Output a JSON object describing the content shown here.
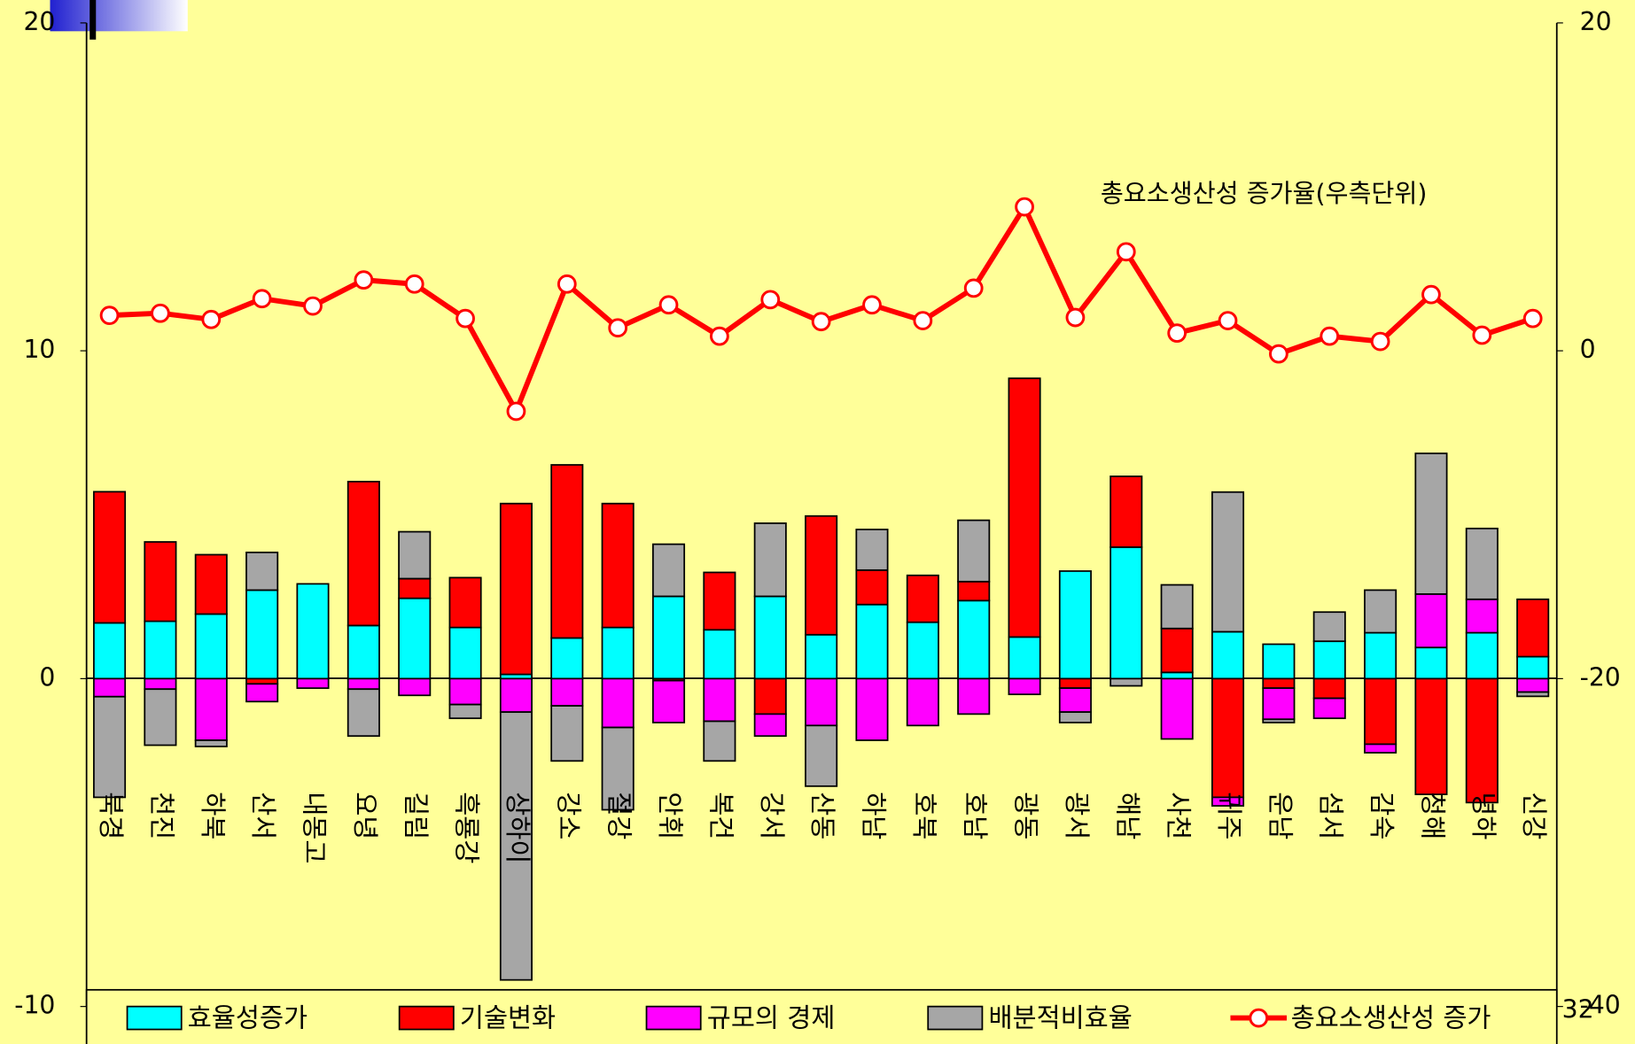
{
  "chart_data": {
    "type": "bar",
    "annotation": "총요소생산성 증가율(우측단위)",
    "page_number": "32",
    "categories": [
      "북경",
      "천진",
      "하북",
      "산서",
      "내몽고",
      "요녕",
      "길림",
      "흑룡강",
      "상하이",
      "강소",
      "절강",
      "안휘",
      "복건",
      "강서",
      "산동",
      "하남",
      "호북",
      "호남",
      "광동",
      "광서",
      "해남",
      "사천",
      "귀주",
      "운남",
      "섬서",
      "감숙",
      "청해",
      "녕하",
      "신강"
    ],
    "ylim": [
      -10,
      20
    ],
    "yticks": [
      -10,
      0,
      10,
      20
    ],
    "y2lim": [
      -40,
      20
    ],
    "y2ticks": [
      -40,
      -20,
      0,
      20
    ],
    "stacked": true,
    "series": [
      {
        "name": "효율성증가",
        "color": "#00ffff",
        "values": [
          1.7,
          1.75,
          1.97,
          2.7,
          2.89,
          1.62,
          2.45,
          1.56,
          0.13,
          1.24,
          1.56,
          2.51,
          1.49,
          2.51,
          1.34,
          2.26,
          1.72,
          2.38,
          1.27,
          3.28,
          4.01,
          0.19,
          1.43,
          1.05,
          1.14,
          1.4,
          0.95,
          1.4,
          0.67
        ]
      },
      {
        "name": "기술변화",
        "color": "#ff0000",
        "values": [
          4.0,
          2.42,
          1.81,
          -0.16,
          0,
          4.39,
          0.6,
          1.52,
          5.21,
          5.28,
          3.78,
          -0.06,
          1.75,
          -1.08,
          3.62,
          1.05,
          1.43,
          0.58,
          7.89,
          -0.29,
          2.16,
          1.34,
          -3.62,
          -0.29,
          -0.6,
          -2.0,
          -3.53,
          -3.78,
          1.75
        ]
      },
      {
        "name": "규모의 경제",
        "color": "#ff00ff",
        "values": [
          -0.55,
          -0.32,
          -1.88,
          -0.54,
          -0.29,
          -0.32,
          -0.51,
          -0.79,
          -1.02,
          -0.83,
          -1.49,
          -1.28,
          -1.3,
          -0.67,
          -1.43,
          -1.88,
          -1.43,
          -1.08,
          -0.48,
          -0.73,
          0,
          -1.84,
          -0.26,
          -0.95,
          -0.61,
          -0.26,
          1.63,
          1.02,
          -0.41
        ]
      },
      {
        "name": "배분적비효율",
        "color": "#a6a6a6",
        "values": [
          -3.07,
          -1.71,
          -0.19,
          1.15,
          0,
          -1.43,
          1.43,
          -0.42,
          -8.17,
          -1.68,
          -2.51,
          1.59,
          -1.21,
          2.23,
          -1.85,
          1.24,
          0,
          1.87,
          0,
          -0.32,
          -0.22,
          1.33,
          4.26,
          -0.1,
          0.89,
          1.3,
          4.29,
          2.16,
          -0.13
        ]
      },
      {
        "name": "총요소생산성 증가",
        "type": "line",
        "axis": "y2",
        "color": "#ff0000",
        "values": [
          2.16,
          2.29,
          1.91,
          3.18,
          2.73,
          4.32,
          4.07,
          1.97,
          -3.69,
          4.07,
          1.4,
          2.8,
          0.89,
          3.12,
          1.78,
          2.8,
          1.84,
          3.82,
          8.78,
          2.03,
          6.04,
          1.08,
          1.84,
          -0.19,
          0.89,
          0.57,
          3.43,
          0.95,
          1.97
        ]
      }
    ]
  }
}
